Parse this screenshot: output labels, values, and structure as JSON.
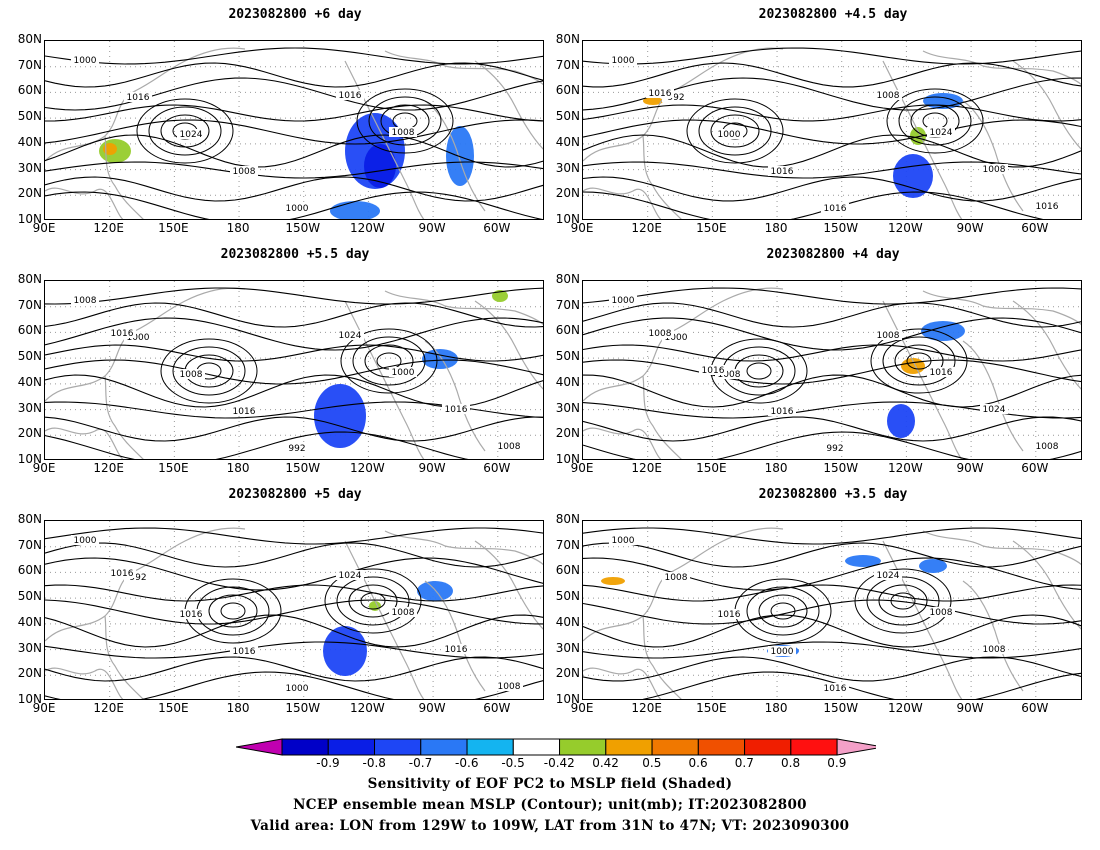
{
  "panels": [
    {
      "title": "2023082800  +6 day",
      "contour_labels": [
        "1000",
        "1016",
        "1024",
        "1008",
        "1000",
        "1016",
        "1008"
      ]
    },
    {
      "title": "2023082800  +4.5 day",
      "contour_labels": [
        "1000",
        "992",
        "1000",
        "1016",
        "1016",
        "1008",
        "1024",
        "1008",
        "1016",
        "1016"
      ]
    },
    {
      "title": "2023082800  +5.5 day",
      "contour_labels": [
        "1008",
        "1000",
        "1008",
        "1016",
        "992",
        "1024",
        "1000",
        "1016",
        "1008",
        "1016"
      ]
    },
    {
      "title": "2023082800  +4 day",
      "contour_labels": [
        "1000",
        "1000",
        "1008",
        "1016",
        "992",
        "1008",
        "1016",
        "1024",
        "1008",
        "1008",
        "1016"
      ]
    },
    {
      "title": "2023082800  +5 day",
      "contour_labels": [
        "1000",
        "992",
        "1016",
        "1016",
        "1000",
        "1024",
        "1008",
        "1016",
        "1008",
        "1016"
      ]
    },
    {
      "title": "2023082800  +3.5 day",
      "contour_labels": [
        "1000",
        "1008",
        "1016",
        "1000",
        "1016",
        "1024",
        "1008",
        "1008"
      ]
    }
  ],
  "lat_labels": [
    "80N",
    "70N",
    "60N",
    "50N",
    "40N",
    "30N",
    "20N",
    "10N"
  ],
  "lon_labels": [
    "90E",
    "120E",
    "150E",
    "180",
    "150W",
    "120W",
    "90W",
    "60W"
  ],
  "colorbar": {
    "labels": [
      "-0.9",
      "-0.8",
      "-0.7",
      "-0.6",
      "-0.5",
      "-0.42",
      "0.42",
      "0.5",
      "0.6",
      "0.7",
      "0.8",
      "0.9"
    ],
    "colors": [
      "#c000b0",
      "#0000c8",
      "#0a1ee6",
      "#1e46f5",
      "#2a78f5",
      "#14b4f0",
      "#ffffff",
      "#96cc2c",
      "#f0a000",
      "#f07800",
      "#f05000",
      "#f01e00",
      "#ff1010",
      "#f4a0c8"
    ]
  },
  "footer": {
    "line1": "Sensitivity of EOF PC2 to MSLP field (Shaded)",
    "line2": "NCEP ensemble mean MSLP (Contour); unit(mb); IT:2023082800",
    "line3": "Valid area: LON from 129W to 109W, LAT from 31N to 47N; VT: 2023090300"
  }
}
